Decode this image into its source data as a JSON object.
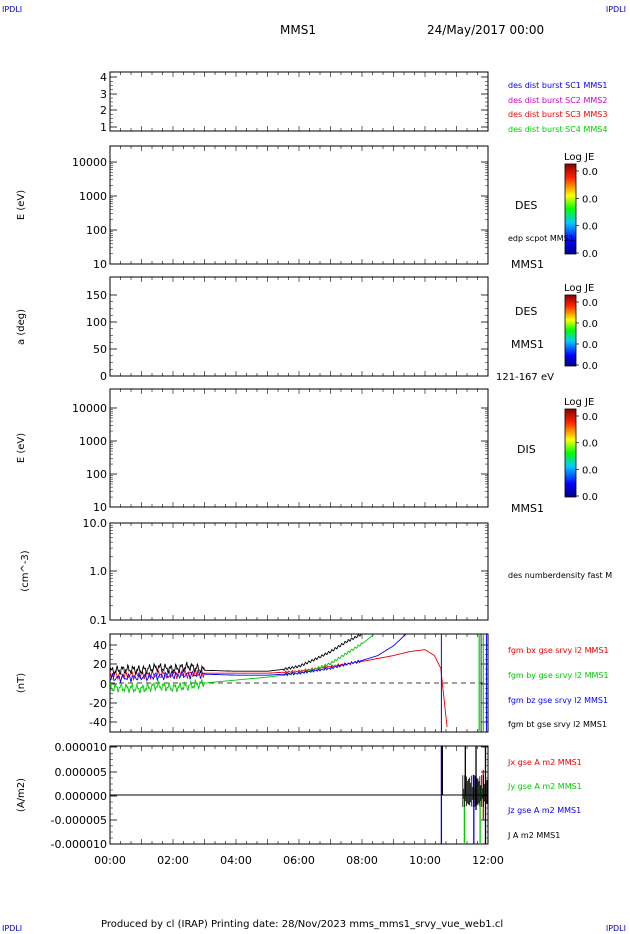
{
  "corners": {
    "tl": "IPDLI",
    "tr": "IPDLI",
    "bl": "IPDLI",
    "br": "IPDLI"
  },
  "header": {
    "title": "MMS1",
    "date": "24/May/2017 00:00"
  },
  "footer": {
    "text": "Produced by cl (IRAP)   Printing date: 28/Nov/2023   mms_mms1_srvy_vue_web1.cl"
  },
  "colors": {
    "c1": "#0000ff",
    "c2": "#cc00cc",
    "c3": "#ee0000",
    "c4": "#00cc00",
    "black": "#000000"
  },
  "time_axis": {
    "ticks": [
      "00:00",
      "02:00",
      "04:00",
      "06:00",
      "08:00",
      "10:00",
      "12:00"
    ]
  },
  "chart_data": [
    {
      "type": "line",
      "panel": "burst",
      "ylabel": "",
      "yticks": [
        "1",
        "2",
        "3",
        "4"
      ],
      "ylim": [
        0.7,
        4.3
      ],
      "legend": [
        {
          "text": "des dist burst SC1 MMS1",
          "color": "#0000ff"
        },
        {
          "text": "des dist burst SC2 MMS2",
          "color": "#cc00cc"
        },
        {
          "text": "des dist burst SC3 MMS3",
          "color": "#ee0000"
        },
        {
          "text": "des dist burst SC4 MMS4",
          "color": "#00cc00"
        }
      ]
    },
    {
      "type": "heatmap",
      "panel": "des_energy",
      "ylabel": "E (eV)",
      "scale": "log",
      "yticks": [
        "10",
        "100",
        "1000",
        "10000"
      ],
      "ylim": [
        10,
        30000
      ],
      "labels": [
        "DES",
        "edp scpot MMS1",
        "MMS1"
      ],
      "colorbar": {
        "title": "Log JE",
        "ticks": [
          "0.0",
          "0.0",
          "0.0",
          "0.0"
        ]
      }
    },
    {
      "type": "heatmap",
      "panel": "des_pitch",
      "ylabel": "a (deg)",
      "yticks": [
        "0",
        "50",
        "100",
        "150"
      ],
      "ylim": [
        0,
        180
      ],
      "labels": [
        "DES",
        "MMS1",
        "121-167 eV"
      ],
      "colorbar": {
        "title": "Log JE",
        "ticks": [
          "0.0",
          "0.0",
          "0.0",
          "0.0"
        ]
      }
    },
    {
      "type": "heatmap",
      "panel": "dis_energy",
      "ylabel": "E (eV)",
      "scale": "log",
      "yticks": [
        "10",
        "100",
        "1000",
        "10000"
      ],
      "ylim": [
        10,
        30000
      ],
      "labels": [
        "DIS",
        "MMS1"
      ],
      "colorbar": {
        "title": "Log JE",
        "ticks": [
          "0.0",
          "0.0",
          "0.0",
          "0.0"
        ]
      }
    },
    {
      "type": "line",
      "panel": "density",
      "ylabel": "(cm^-3)",
      "scale": "log",
      "yticks": [
        "0.1",
        "1.0",
        "10.0"
      ],
      "ylim": [
        0.1,
        10
      ],
      "legend": [
        {
          "text": "des numberdensity fast M",
          "color": "#000000"
        }
      ]
    },
    {
      "type": "line",
      "panel": "fgm",
      "ylabel": "(nT)",
      "yticks": [
        "-40",
        "-20",
        "0",
        "20",
        "40"
      ],
      "ylim": [
        -50,
        50
      ],
      "legend": [
        {
          "text": "fgm bx gse srvy l2 MMS1",
          "color": "#ee0000"
        },
        {
          "text": "fgm by gse srvy l2 MMS1",
          "color": "#00cc00"
        },
        {
          "text": "fgm bz gse srvy l2 MMS1",
          "color": "#0000ff"
        },
        {
          "text": "fgm bt gse srvy l2 MMS1",
          "color": "#000000"
        }
      ],
      "series": [
        {
          "name": "fgm bx gse srvy l2 MMS1",
          "color": "#ee0000",
          "x": [
            0,
            1,
            2,
            3,
            4,
            5,
            6,
            7,
            8,
            9,
            9.5,
            10,
            10.3,
            10.5,
            10.7
          ],
          "y": [
            8,
            8,
            9,
            10,
            10,
            10,
            12,
            17,
            22,
            28,
            32,
            34,
            28,
            15,
            -45
          ]
        },
        {
          "name": "fgm by gse srvy l2 MMS1",
          "color": "#00cc00",
          "x": [
            0,
            0.5,
            1,
            1.5,
            2,
            2.5,
            3,
            4,
            5,
            6,
            6.5,
            7,
            7.5,
            8,
            8.4
          ],
          "y": [
            -5,
            -5,
            -6,
            -3,
            -5,
            -3,
            0,
            3,
            6,
            10,
            14,
            20,
            30,
            40,
            50
          ]
        },
        {
          "name": "fgm bz gse srvy l2 MMS1",
          "color": "#0000ff",
          "x": [
            0,
            1,
            2,
            3,
            4,
            5,
            6,
            7,
            8,
            8.5,
            9,
            9.4
          ],
          "y": [
            5,
            6,
            8,
            9,
            8,
            8,
            10,
            15,
            23,
            28,
            38,
            50
          ]
        },
        {
          "name": "fgm bt gse srvy l2 MMS1",
          "color": "#000000",
          "x": [
            0,
            0.5,
            1,
            1.5,
            2,
            2.5,
            3,
            4,
            5,
            5.5,
            6,
            6.5,
            7,
            7.5,
            8
          ],
          "y": [
            12,
            14,
            13,
            16,
            14,
            17,
            13,
            12,
            12,
            14,
            17,
            24,
            32,
            42,
            50
          ]
        }
      ]
    },
    {
      "type": "line",
      "panel": "current",
      "ylabel": "(A/m2)",
      "yticks": [
        "-0.000010",
        "-0.000005",
        "0.000000",
        "0.000005",
        "0.000010"
      ],
      "ylim": [
        -1e-05,
        1e-05
      ],
      "legend": [
        {
          "text": "Jx gse A m2 MMS1",
          "color": "#ee0000"
        },
        {
          "text": "Jy gse A m2 MMS1",
          "color": "#00cc00"
        },
        {
          "text": "Jz gse A m2 MMS1",
          "color": "#0000ff"
        },
        {
          "text": "J A m2 MMS1",
          "color": "#000000"
        }
      ]
    }
  ]
}
